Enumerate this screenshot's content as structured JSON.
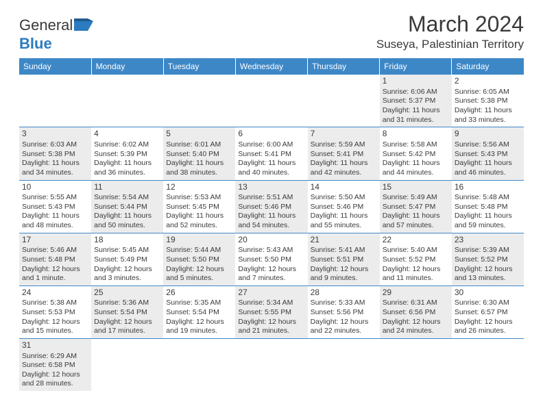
{
  "header": {
    "logo_general": "General",
    "logo_blue": "Blue",
    "month_title": "March 2024",
    "location": "Suseya, Palestinian Territory"
  },
  "colors": {
    "header_bg": "#3d87c7",
    "header_text": "#ffffff",
    "shaded_bg": "#ececec",
    "border": "#3d87c7",
    "text": "#3a3a3a",
    "logo_blue": "#2b7bbf"
  },
  "day_headers": [
    "Sunday",
    "Monday",
    "Tuesday",
    "Wednesday",
    "Thursday",
    "Friday",
    "Saturday"
  ],
  "weeks": [
    [
      {
        "empty": true
      },
      {
        "empty": true
      },
      {
        "empty": true
      },
      {
        "empty": true
      },
      {
        "empty": true
      },
      {
        "day": "1",
        "shaded": true,
        "sunrise": "Sunrise: 6:06 AM",
        "sunset": "Sunset: 5:37 PM",
        "daylight": "Daylight: 11 hours and 31 minutes."
      },
      {
        "day": "2",
        "shaded": false,
        "sunrise": "Sunrise: 6:05 AM",
        "sunset": "Sunset: 5:38 PM",
        "daylight": "Daylight: 11 hours and 33 minutes."
      }
    ],
    [
      {
        "day": "3",
        "shaded": true,
        "sunrise": "Sunrise: 6:03 AM",
        "sunset": "Sunset: 5:38 PM",
        "daylight": "Daylight: 11 hours and 34 minutes."
      },
      {
        "day": "4",
        "shaded": false,
        "sunrise": "Sunrise: 6:02 AM",
        "sunset": "Sunset: 5:39 PM",
        "daylight": "Daylight: 11 hours and 36 minutes."
      },
      {
        "day": "5",
        "shaded": true,
        "sunrise": "Sunrise: 6:01 AM",
        "sunset": "Sunset: 5:40 PM",
        "daylight": "Daylight: 11 hours and 38 minutes."
      },
      {
        "day": "6",
        "shaded": false,
        "sunrise": "Sunrise: 6:00 AM",
        "sunset": "Sunset: 5:41 PM",
        "daylight": "Daylight: 11 hours and 40 minutes."
      },
      {
        "day": "7",
        "shaded": true,
        "sunrise": "Sunrise: 5:59 AM",
        "sunset": "Sunset: 5:41 PM",
        "daylight": "Daylight: 11 hours and 42 minutes."
      },
      {
        "day": "8",
        "shaded": false,
        "sunrise": "Sunrise: 5:58 AM",
        "sunset": "Sunset: 5:42 PM",
        "daylight": "Daylight: 11 hours and 44 minutes."
      },
      {
        "day": "9",
        "shaded": true,
        "sunrise": "Sunrise: 5:56 AM",
        "sunset": "Sunset: 5:43 PM",
        "daylight": "Daylight: 11 hours and 46 minutes."
      }
    ],
    [
      {
        "day": "10",
        "shaded": false,
        "sunrise": "Sunrise: 5:55 AM",
        "sunset": "Sunset: 5:43 PM",
        "daylight": "Daylight: 11 hours and 48 minutes."
      },
      {
        "day": "11",
        "shaded": true,
        "sunrise": "Sunrise: 5:54 AM",
        "sunset": "Sunset: 5:44 PM",
        "daylight": "Daylight: 11 hours and 50 minutes."
      },
      {
        "day": "12",
        "shaded": false,
        "sunrise": "Sunrise: 5:53 AM",
        "sunset": "Sunset: 5:45 PM",
        "daylight": "Daylight: 11 hours and 52 minutes."
      },
      {
        "day": "13",
        "shaded": true,
        "sunrise": "Sunrise: 5:51 AM",
        "sunset": "Sunset: 5:46 PM",
        "daylight": "Daylight: 11 hours and 54 minutes."
      },
      {
        "day": "14",
        "shaded": false,
        "sunrise": "Sunrise: 5:50 AM",
        "sunset": "Sunset: 5:46 PM",
        "daylight": "Daylight: 11 hours and 55 minutes."
      },
      {
        "day": "15",
        "shaded": true,
        "sunrise": "Sunrise: 5:49 AM",
        "sunset": "Sunset: 5:47 PM",
        "daylight": "Daylight: 11 hours and 57 minutes."
      },
      {
        "day": "16",
        "shaded": false,
        "sunrise": "Sunrise: 5:48 AM",
        "sunset": "Sunset: 5:48 PM",
        "daylight": "Daylight: 11 hours and 59 minutes."
      }
    ],
    [
      {
        "day": "17",
        "shaded": true,
        "sunrise": "Sunrise: 5:46 AM",
        "sunset": "Sunset: 5:48 PM",
        "daylight": "Daylight: 12 hours and 1 minute."
      },
      {
        "day": "18",
        "shaded": false,
        "sunrise": "Sunrise: 5:45 AM",
        "sunset": "Sunset: 5:49 PM",
        "daylight": "Daylight: 12 hours and 3 minutes."
      },
      {
        "day": "19",
        "shaded": true,
        "sunrise": "Sunrise: 5:44 AM",
        "sunset": "Sunset: 5:50 PM",
        "daylight": "Daylight: 12 hours and 5 minutes."
      },
      {
        "day": "20",
        "shaded": false,
        "sunrise": "Sunrise: 5:43 AM",
        "sunset": "Sunset: 5:50 PM",
        "daylight": "Daylight: 12 hours and 7 minutes."
      },
      {
        "day": "21",
        "shaded": true,
        "sunrise": "Sunrise: 5:41 AM",
        "sunset": "Sunset: 5:51 PM",
        "daylight": "Daylight: 12 hours and 9 minutes."
      },
      {
        "day": "22",
        "shaded": false,
        "sunrise": "Sunrise: 5:40 AM",
        "sunset": "Sunset: 5:52 PM",
        "daylight": "Daylight: 12 hours and 11 minutes."
      },
      {
        "day": "23",
        "shaded": true,
        "sunrise": "Sunrise: 5:39 AM",
        "sunset": "Sunset: 5:52 PM",
        "daylight": "Daylight: 12 hours and 13 minutes."
      }
    ],
    [
      {
        "day": "24",
        "shaded": false,
        "sunrise": "Sunrise: 5:38 AM",
        "sunset": "Sunset: 5:53 PM",
        "daylight": "Daylight: 12 hours and 15 minutes."
      },
      {
        "day": "25",
        "shaded": true,
        "sunrise": "Sunrise: 5:36 AM",
        "sunset": "Sunset: 5:54 PM",
        "daylight": "Daylight: 12 hours and 17 minutes."
      },
      {
        "day": "26",
        "shaded": false,
        "sunrise": "Sunrise: 5:35 AM",
        "sunset": "Sunset: 5:54 PM",
        "daylight": "Daylight: 12 hours and 19 minutes."
      },
      {
        "day": "27",
        "shaded": true,
        "sunrise": "Sunrise: 5:34 AM",
        "sunset": "Sunset: 5:55 PM",
        "daylight": "Daylight: 12 hours and 21 minutes."
      },
      {
        "day": "28",
        "shaded": false,
        "sunrise": "Sunrise: 5:33 AM",
        "sunset": "Sunset: 5:56 PM",
        "daylight": "Daylight: 12 hours and 22 minutes."
      },
      {
        "day": "29",
        "shaded": true,
        "sunrise": "Sunrise: 6:31 AM",
        "sunset": "Sunset: 6:56 PM",
        "daylight": "Daylight: 12 hours and 24 minutes."
      },
      {
        "day": "30",
        "shaded": false,
        "sunrise": "Sunrise: 6:30 AM",
        "sunset": "Sunset: 6:57 PM",
        "daylight": "Daylight: 12 hours and 26 minutes."
      }
    ],
    [
      {
        "day": "31",
        "shaded": true,
        "sunrise": "Sunrise: 6:29 AM",
        "sunset": "Sunset: 6:58 PM",
        "daylight": "Daylight: 12 hours and 28 minutes."
      },
      {
        "empty": true
      },
      {
        "empty": true
      },
      {
        "empty": true
      },
      {
        "empty": true
      },
      {
        "empty": true
      },
      {
        "empty": true
      }
    ]
  ]
}
